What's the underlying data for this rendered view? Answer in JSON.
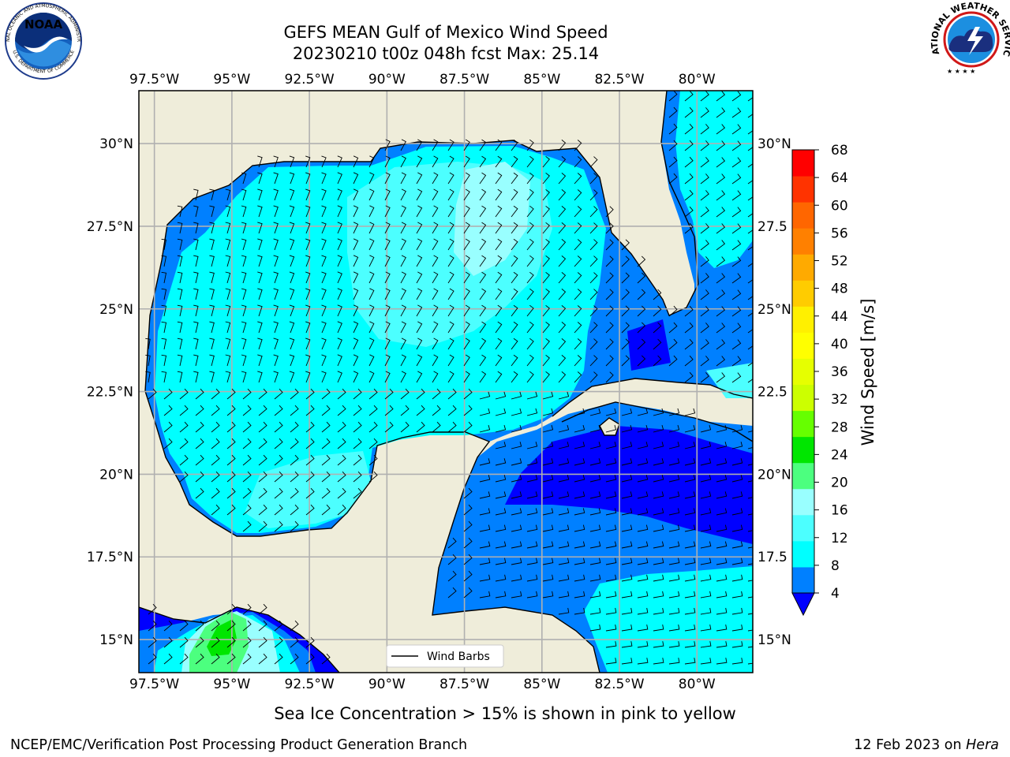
{
  "title_line1": "GEFS MEAN Gulf of Mexico Wind Speed",
  "title_line2": "20230210 t00z 048h fcst   Max: 25.14",
  "map": {
    "lon_ticks": [
      "97.5°W",
      "95°W",
      "92.5°W",
      "90°W",
      "87.5°W",
      "85°W",
      "82.5°W",
      "80°W"
    ],
    "lon_values": [
      -97.5,
      -95,
      -92.5,
      -90,
      -87.5,
      -85,
      -82.5,
      -80
    ],
    "lat_ticks_left": [
      "30°N",
      "27.5°N",
      "25°N",
      "22.5°N",
      "20°N",
      "17.5°N",
      "15°N"
    ],
    "lat_ticks_right": [
      "30°N",
      "27.5",
      "25°N",
      "22.5",
      "20°N",
      "17.5",
      "15°N"
    ],
    "lat_values": [
      30,
      27.5,
      25,
      22.5,
      20,
      17.5,
      15
    ],
    "lon_range": [
      -98,
      -78.2
    ],
    "lat_range": [
      14,
      31.6
    ],
    "legend_label": "Wind Barbs",
    "colors": {
      "land": "#efedda",
      "level_4_8": "#0080ff",
      "level_8_12": "#00ffff",
      "level_12_16": "#4cffff",
      "level_16_20": "#99ffff",
      "level_20_24": "#4cff7f",
      "level_24_28": "#00e600",
      "below_4": "#0000ff"
    }
  },
  "colorbar": {
    "label": "Wind Speed [m/s]",
    "ticks": [
      "68",
      "64",
      "60",
      "56",
      "52",
      "48",
      "44",
      "40",
      "36",
      "32",
      "28",
      "24",
      "20",
      "16",
      "12",
      "8",
      "4"
    ],
    "colors": [
      "#0080ff",
      "#00ffff",
      "#4cffff",
      "#99ffff",
      "#4cff7f",
      "#00e600",
      "#66ff00",
      "#ccff00",
      "#e6ff00",
      "#ffff00",
      "#fff000",
      "#ffcc00",
      "#ffaa00",
      "#ff8000",
      "#ff6600",
      "#ff3300",
      "#ff0000"
    ],
    "extend_color": "#0000ff"
  },
  "subtitle": "Sea Ice Concentration > 15% is shown in pink to yellow",
  "footer_left": "NCEP/EMC/Verification Post Processing Product Generation Branch",
  "footer_right_date": "12 Feb 2023 on ",
  "footer_right_machine": "Hera",
  "logos": {
    "noaa_text": "NOAA",
    "noaa_ring_top": "NATIONAL OCEANIC AND ATMOSPHERIC ADMINISTRATION",
    "noaa_ring_bottom": "U.S. DEPARTMENT OF COMMERCE",
    "nws_ring": "NATIONAL WEATHER SERVICE"
  }
}
